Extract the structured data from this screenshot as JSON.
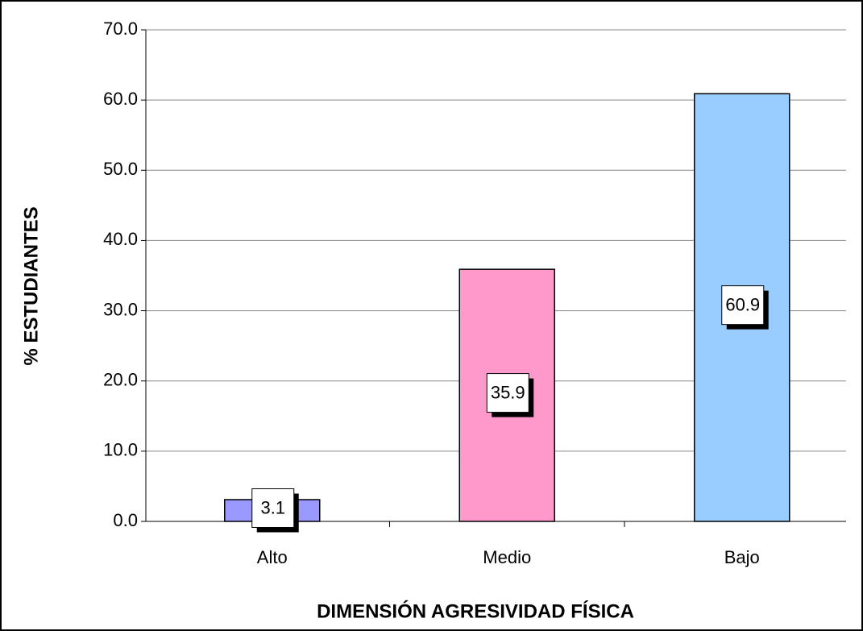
{
  "chart_data": {
    "type": "bar",
    "x_label": "DIMENSIÓN AGRESIVIDAD FÍSICA",
    "y_label": "% ESTUDIANTES",
    "categories": [
      "Alto",
      "Medio",
      "Bajo"
    ],
    "values": [
      3.1,
      35.9,
      60.9
    ],
    "colors": [
      "#9999ff",
      "#ff99cc",
      "#99ccff"
    ],
    "ylim": [
      0,
      70
    ],
    "yticks": [
      {
        "value": 0,
        "label": "0.0"
      },
      {
        "value": 10,
        "label": "10.0"
      },
      {
        "value": 20,
        "label": "20.0"
      },
      {
        "value": 30,
        "label": "30.0"
      },
      {
        "value": 40,
        "label": "40.0"
      },
      {
        "value": 50,
        "label": "50.0"
      },
      {
        "value": 60,
        "label": "60.0"
      },
      {
        "value": 70,
        "label": "70.0"
      }
    ],
    "grid": true
  }
}
